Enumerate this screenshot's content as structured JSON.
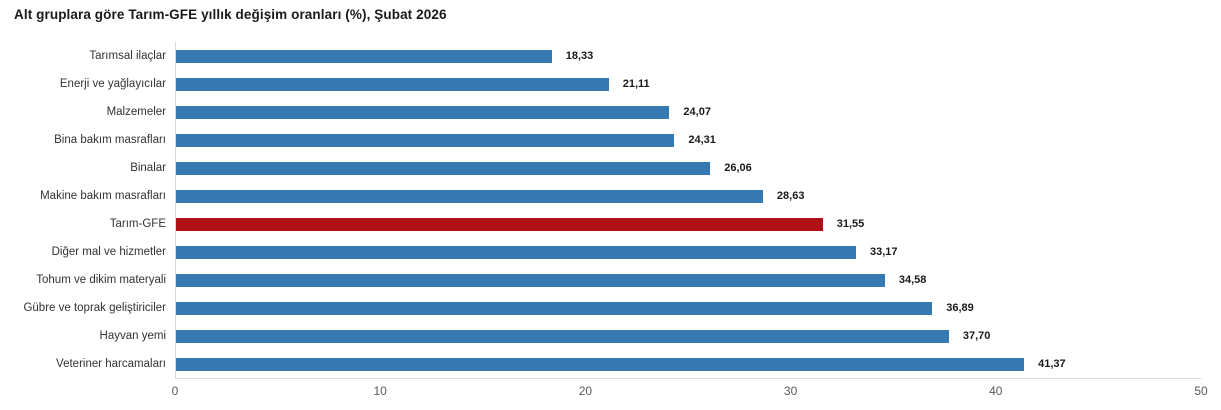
{
  "title": "Alt gruplara göre Tarım-GFE yıllık değişim oranları (%), Şubat 2026",
  "chart_data": {
    "type": "bar",
    "orientation": "horizontal",
    "title": "Alt gruplara göre Tarım-GFE yıllık değişim oranları (%), Şubat 2026",
    "categories": [
      "Tarımsal ilaçlar",
      "Enerji  ve yağlayıcılar",
      "Malzemeler",
      "Bina bakım masrafları",
      "Binalar",
      "Makine bakım masrafları",
      "Tarım-GFE",
      "Diğer mal ve hizmetler",
      "Tohum ve dikim materyali",
      "Gübre ve toprak geliştiriciler",
      "Hayvan yemi",
      "Veteriner harcamaları"
    ],
    "values": [
      18.33,
      21.11,
      24.07,
      24.31,
      26.06,
      28.63,
      31.55,
      33.17,
      34.58,
      36.89,
      37.7,
      41.37
    ],
    "value_labels": [
      "18,33",
      "21,11",
      "24,07",
      "24,31",
      "26,06",
      "28,63",
      "31,55",
      "33,17",
      "34,58",
      "36,89",
      "37,70",
      "41,37"
    ],
    "highlight_category": "Tarım-GFE",
    "highlight_index": 6,
    "xlabel": "",
    "ylabel": "",
    "xlim": [
      0,
      50
    ],
    "x_ticks": [
      0,
      10,
      20,
      30,
      40,
      50
    ],
    "grid": false,
    "legend": "none",
    "colors": {
      "bar": "#3678b0",
      "highlight_bar": "#b01117",
      "title_text": "#1a1a1a",
      "category_text": "#333333",
      "value_text": "#1a1a1a",
      "tick_text": "#595959",
      "axis_line": "#d9d9d9",
      "background": "#ffffff"
    }
  }
}
